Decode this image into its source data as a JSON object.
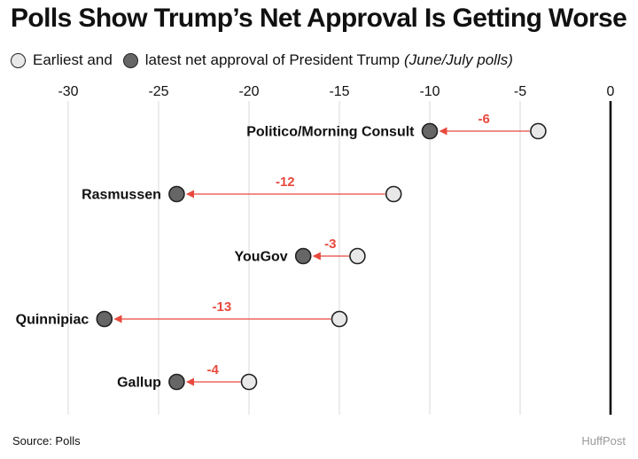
{
  "header": {
    "title": "Polls Show Trump’s Net Approval Is Getting Worse",
    "legend_earliest": "Earliest and",
    "legend_latest": "latest net approval of President Trump",
    "legend_note": "(June/July polls)"
  },
  "footer": {
    "source": "Source: Polls",
    "brand": "HuffPost"
  },
  "colors": {
    "early_fill": "#e8e8e8",
    "late_fill": "#666666",
    "change": "#e8493d",
    "grid": "#d9d9d9",
    "zero_line": "#000000"
  },
  "chart_data": {
    "type": "dumbbell",
    "xlim": [
      -30,
      0
    ],
    "xticks": [
      -30,
      -25,
      -20,
      -15,
      -10,
      -5,
      0
    ],
    "grid": true,
    "tick_position": "top",
    "series": [
      {
        "name": "Earliest",
        "style": "light circle"
      },
      {
        "name": "Latest",
        "style": "dark circle"
      }
    ],
    "rows": [
      {
        "pollster": "Politico/Morning Consult",
        "earliest": -4,
        "latest": -10,
        "change": "-6"
      },
      {
        "pollster": "Rasmussen",
        "earliest": -12,
        "latest": -24,
        "change": "-12"
      },
      {
        "pollster": "YouGov",
        "earliest": -14,
        "latest": -17,
        "change": "-3"
      },
      {
        "pollster": "Quinnipiac",
        "earliest": -15,
        "latest": -28,
        "change": "-13"
      },
      {
        "pollster": "Gallup",
        "earliest": -20,
        "latest": -24,
        "change": "-4"
      }
    ]
  }
}
